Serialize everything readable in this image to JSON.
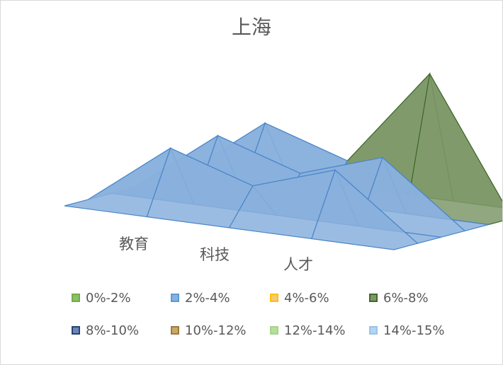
{
  "title": "上海",
  "chart_data": {
    "type": "surface",
    "title": "上海",
    "categories": [
      "教育",
      "科技",
      "人才"
    ],
    "series": [
      {
        "name": "0%-2%",
        "color": "#70ad47"
      },
      {
        "name": "2%-4%",
        "color": "#5b9bd5"
      },
      {
        "name": "4%-6%",
        "color": "#ffc000"
      },
      {
        "name": "6%-8%",
        "color": "#43682b"
      },
      {
        "name": "8%-10%",
        "color": "#264478"
      },
      {
        "name": "10%-12%",
        "color": "#9e7d3a"
      },
      {
        "name": "12%-14%",
        "color": "#a9d18e"
      },
      {
        "name": "14%-15%",
        "color": "#9dc3e6"
      }
    ],
    "band_fills": [
      "#8dbf6a",
      "#8ab0dd",
      "#f3c97a",
      "#7e9868",
      "#6f86b4",
      "#c9a86e",
      "#b3e09a",
      "#b2d4f5"
    ],
    "band_strokes": [
      "#5f9a3a",
      "#4a86c8",
      "#f0b400",
      "#3f6a2a",
      "#2f4f86",
      "#8a6a2e",
      "#8cc46a",
      "#8ab8e8"
    ],
    "grid": [
      [
        0,
        0,
        0,
        0,
        0
      ],
      [
        0,
        7,
        4,
        7,
        0
      ],
      [
        0,
        0,
        0,
        0,
        0
      ],
      [
        0,
        7,
        4,
        7,
        0
      ],
      [
        0,
        0,
        0,
        0,
        0
      ],
      [
        0,
        7,
        4,
        15,
        0
      ],
      [
        0,
        0,
        0,
        0,
        0
      ]
    ],
    "zlim": [
      0,
      15
    ],
    "legend_position": "bottom"
  }
}
